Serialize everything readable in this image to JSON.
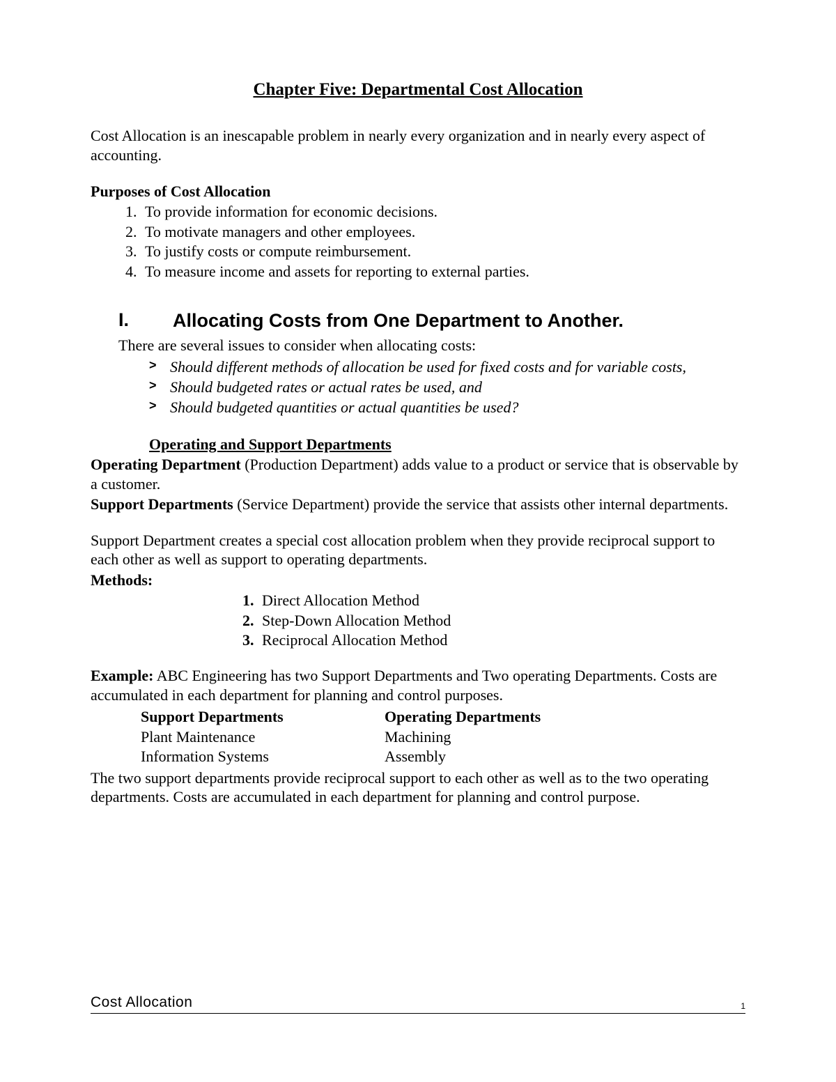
{
  "title": "Chapter Five: Departmental Cost Allocation",
  "intro": "Cost Allocation is an inescapable problem in nearly every organization and in nearly every aspect of accounting.",
  "purposes_head": "Purposes of Cost Allocation",
  "purposes": [
    "To provide information for economic decisions.",
    "To motivate managers and other employees.",
    "To justify costs or compute reimbursement.",
    "To measure income and assets for reporting to external parties."
  ],
  "section": {
    "roman": "I.",
    "title": "Allocating Costs from One Department to Another.",
    "issues_intro": "There are several issues to consider when allocating costs:",
    "issues": [
      "Should different methods of allocation be used for fixed costs and for variable costs,",
      "Should budgeted rates or actual rates be used, and",
      "Should budgeted quantities or actual quantities be used?"
    ]
  },
  "opsupport_head": "Operating and Support Departments",
  "operating_label": "Operating Department",
  "operating_text": " (Production Department) adds value to a product or service that is observable by a customer.",
  "support_label": "Support Departments",
  "support_text": " (Service Department) provide the service that assists other internal departments.",
  "support_para2": "Support Department creates a special cost allocation problem when they provide reciprocal support to each other as well as support to operating departments.",
  "methods_head": "Methods:",
  "methods": [
    "Direct Allocation Method",
    "Step-Down Allocation Method",
    "Reciprocal Allocation Method"
  ],
  "example_label": "Example:",
  "example_text": " ABC Engineering has two Support Departments and Two operating Departments. Costs are accumulated in each department for planning and control purposes.",
  "dept_table": {
    "head1": "Support Departments",
    "head2": "Operating Departments",
    "rows": [
      [
        "Plant Maintenance",
        "Machining"
      ],
      [
        "Information Systems",
        "Assembly"
      ]
    ]
  },
  "closing": "The two support departments provide reciprocal support to each other as well as to the two operating departments. Costs are accumulated in each department for planning and control purpose.",
  "footer": {
    "left": "Cost Allocation",
    "page": "1"
  },
  "colors": {
    "text": "#000000",
    "background": "#ffffff",
    "rule": "#000000"
  }
}
